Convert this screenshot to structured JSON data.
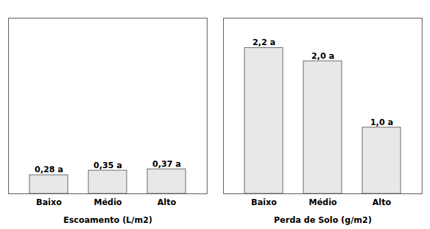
{
  "chart_data": [
    {
      "type": "bar",
      "xlabel": "Escoamento (L/m2)",
      "categories": [
        "Baixo",
        "Médio",
        "Alto"
      ],
      "values": [
        0.28,
        0.35,
        0.37
      ],
      "value_labels": [
        "0,28 a",
        "0,35 a",
        "0,37 a"
      ],
      "data_labels": true,
      "color": "#e8e8e8",
      "ylim": [
        0,
        2.65
      ],
      "tick_labels": "x",
      "grid": false
    },
    {
      "type": "bar",
      "xlabel": "Perda de Solo (g/m2)",
      "categories": [
        "Baixo",
        "Médio",
        "Alto"
      ],
      "values": [
        2.2,
        2.0,
        1.0
      ],
      "value_labels": [
        "2,2 a",
        "2,0 a",
        "1,0 a"
      ],
      "data_labels": true,
      "color": "#e8e8e8",
      "ylim": [
        0,
        2.65
      ],
      "tick_labels": "x",
      "grid": false
    }
  ]
}
